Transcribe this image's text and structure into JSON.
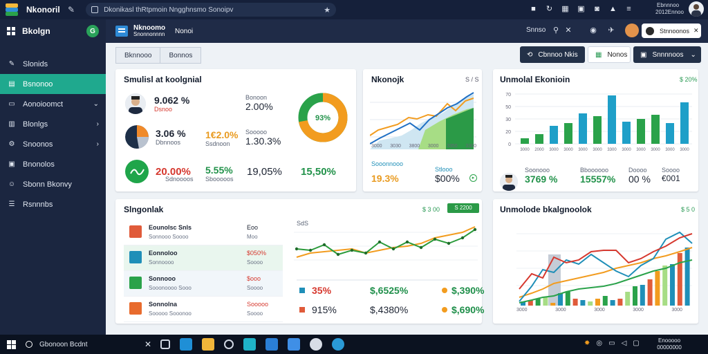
{
  "chrome": {
    "app_title": "Nkonoril",
    "url": "Dkonikasl thRtpmoin Nngghnsmo Sonoipv",
    "date": "Ebnnnoo 2012Ennoo"
  },
  "sidebar": {
    "title": "Bkolgn",
    "badge": "G",
    "items": [
      {
        "label": "Slonids"
      },
      {
        "label": "Bsnonoo"
      },
      {
        "label": "Aonoioomct"
      },
      {
        "label": "Blonlgs"
      },
      {
        "label": "Snoonos"
      },
      {
        "label": "Bnonolos"
      },
      {
        "label": "Sbonn Bkonvy"
      },
      {
        "label": "Rsnnnbs"
      }
    ]
  },
  "topbar": {
    "title_line1": "Nknoomo",
    "title_line2": "Snonnonnnn",
    "section": "Nonoi",
    "search_label": "Snnso",
    "user_name": "Stnnoonos"
  },
  "tabs": [
    "Bknnooo",
    "Bonnos"
  ],
  "buttons": {
    "primary": "Cbnnoo Nkis",
    "secondary": "Nonos",
    "dropdown": "Snnnnoos"
  },
  "card1": {
    "title": "Smulisl at koolgnial",
    "rows": [
      {
        "value": "9.062 %",
        "sub": "Dsnoo",
        "side_label": "Bonoon",
        "side_value": "2.00%"
      },
      {
        "value": "3.06 %",
        "sub": "Dbnnoos",
        "mid_value": "1€2.0%",
        "mid_sub": "Ssdnoon",
        "side_label": "Sooooo",
        "side_value": "1.30.3%"
      }
    ],
    "bottom": {
      "v1": "20.00%",
      "v1_sub": "Sdnoooos",
      "v2": "5.55%",
      "v2_sub": "Sbooooos",
      "v3": "19,05%",
      "v4": "15,50%"
    },
    "donut_label": "93%",
    "donut_percent": 72
  },
  "card2": {
    "title": "Nkonojk",
    "tag": "S / S",
    "x_labels": [
      "3000",
      "3030",
      "3800",
      "3000",
      "3350",
      "3300"
    ],
    "legend1": "Sooonnooo",
    "value1": "19.3%",
    "legend2": "Stlooo",
    "value2": "$00%"
  },
  "card3": {
    "title": "Unmolal Ekonioin",
    "tag": "$ 20%",
    "y_labels": [
      "70",
      "50",
      "30",
      "20",
      "0"
    ],
    "x_labels": [
      "3000",
      "2000",
      "3000",
      "3000",
      "3000",
      "3000",
      "3300",
      "3000",
      "3000",
      "3000",
      "3000",
      "3000"
    ],
    "kpis": [
      {
        "label": "Soonooo",
        "value": "3769 %"
      },
      {
        "label": "Bboooooo",
        "value": "15557%"
      },
      {
        "label": "Doooo",
        "value": "00 %"
      },
      {
        "label": "Soooo",
        "value": "€001"
      }
    ]
  },
  "card4": {
    "title": "Slngonlak",
    "tag": "$ 3 00",
    "button": "S 2200",
    "list": [
      {
        "name": "Eounolsc Snls",
        "sub": "Sonnooo Soooo",
        "val": "Eoo",
        "val2": "Moo",
        "color": "#e05b3a"
      },
      {
        "name": "Eonnoloo",
        "sub": "Sonnoooo",
        "val": "$050%",
        "val2": "Soooo",
        "color": "#1f8fb8"
      },
      {
        "name": "Sonnooo",
        "sub": "Sooonoooo Sooo",
        "val": "$ooo",
        "val2": "Soooo",
        "color": "#2aa24a"
      },
      {
        "name": "Sonnolna",
        "sub": "Sooooo Sooonoo",
        "val": "Sooooo",
        "val2": "Soooo",
        "color": "#e86b2d"
      }
    ],
    "chart_top_label": "SdS",
    "stats": [
      {
        "v": "35% ",
        "color": "#d6382e"
      },
      {
        "v": "$,6525%",
        "color": "#1f8f4a"
      },
      {
        "v": "$,390%",
        "color": "#1f8f4a"
      },
      {
        "v": "915%",
        "color": "#1d2433"
      },
      {
        "v": "$,4380%",
        "color": "#1d2433"
      },
      {
        "v": "$,690%",
        "color": "#1f8f4a"
      }
    ]
  },
  "card5": {
    "title": "Unmolode bkalgnoolok",
    "tag": "$ 5 0",
    "x_labels": [
      "3000",
      "3000",
      "3000",
      "3000",
      "3000"
    ]
  },
  "taskbar": {
    "search": "Gbonoon Bcdnt",
    "clock": "Enooooo 00000000"
  },
  "colors": {
    "teal": "#1fa98e",
    "navy": "#1b2640",
    "green": "#22924a",
    "orange": "#f29c1f",
    "blue": "#1f8fb8",
    "red": "#d6382e"
  }
}
